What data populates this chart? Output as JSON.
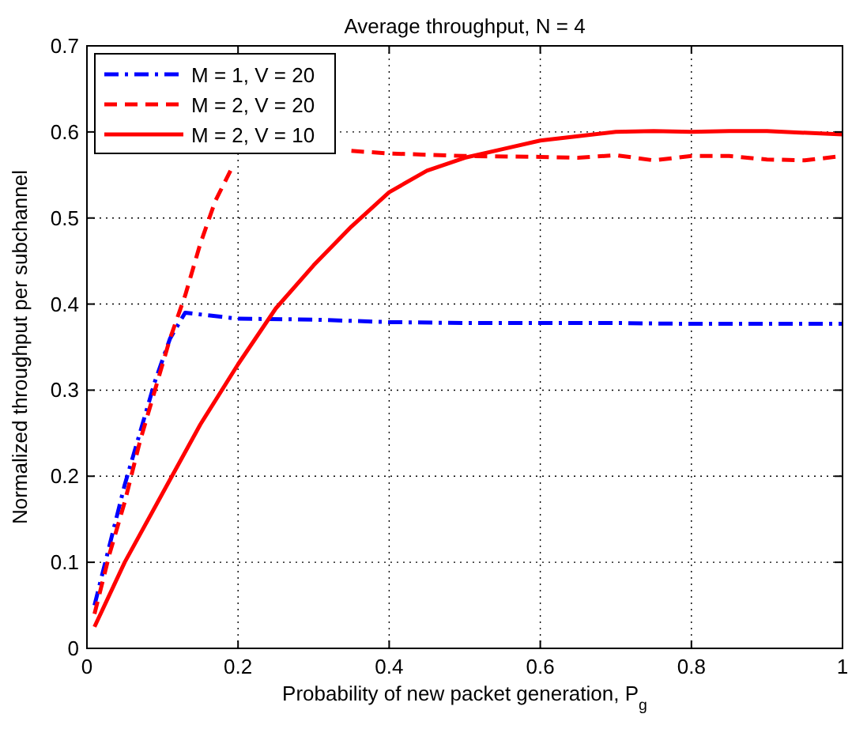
{
  "chart_data": {
    "type": "line",
    "title": "Average throughput, N = 4",
    "xlabel": "Probability of new packet generation, P$_{g}$",
    "ylabel": "Normalized throughput per subchannel",
    "xlim": [
      0,
      1
    ],
    "ylim": [
      0,
      0.7
    ],
    "xticks": [
      0,
      0.2,
      0.4,
      0.6,
      0.8,
      1
    ],
    "yticks": [
      0,
      0.1,
      0.2,
      0.3,
      0.4,
      0.5,
      0.6,
      0.7
    ],
    "grid": true,
    "legend": "top left",
    "series": [
      {
        "name": "M = 1, V = 20",
        "color": "#0000ff",
        "line_style": "dashdot",
        "x": [
          0.01,
          0.03,
          0.05,
          0.07,
          0.09,
          0.11,
          0.13,
          0.2,
          0.3,
          0.4,
          0.5,
          0.6,
          0.7,
          0.8,
          0.9,
          1.0
        ],
        "values": [
          0.05,
          0.12,
          0.19,
          0.25,
          0.31,
          0.36,
          0.39,
          0.383,
          0.382,
          0.379,
          0.378,
          0.378,
          0.378,
          0.377,
          0.377,
          0.377
        ]
      },
      {
        "name": "M = 2, V = 20",
        "color": "#ff0000",
        "line_style": "dashed",
        "x": [
          0.01,
          0.03,
          0.05,
          0.07,
          0.09,
          0.11,
          0.13,
          0.15,
          0.17,
          0.19,
          0.21,
          0.25,
          0.3,
          0.35,
          0.4,
          0.5,
          0.6,
          0.65,
          0.7,
          0.75,
          0.8,
          0.85,
          0.9,
          0.95,
          1.0
        ],
        "values": [
          0.04,
          0.11,
          0.17,
          0.24,
          0.3,
          0.36,
          0.41,
          0.47,
          0.52,
          0.555,
          null,
          null,
          null,
          0.578,
          0.575,
          0.572,
          0.571,
          0.57,
          0.573,
          0.567,
          0.572,
          0.572,
          0.568,
          0.567,
          0.572
        ]
      },
      {
        "name": "M = 2, V = 10",
        "color": "#ff0000",
        "line_style": "solid",
        "x": [
          0.01,
          0.05,
          0.1,
          0.15,
          0.2,
          0.25,
          0.3,
          0.35,
          0.4,
          0.45,
          0.5,
          0.55,
          0.6,
          0.65,
          0.7,
          0.75,
          0.8,
          0.85,
          0.9,
          1.0
        ],
        "values": [
          0.025,
          0.1,
          0.18,
          0.26,
          0.33,
          0.395,
          0.445,
          0.49,
          0.53,
          0.555,
          0.57,
          0.58,
          0.59,
          0.595,
          0.6,
          0.601,
          0.6,
          0.601,
          0.601,
          0.597
        ]
      }
    ]
  }
}
